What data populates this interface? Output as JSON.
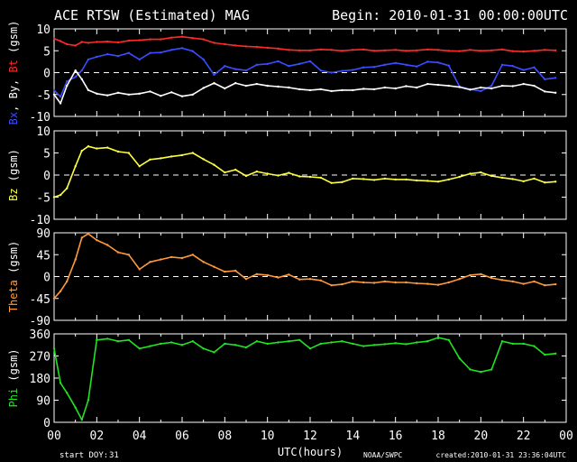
{
  "chart_data": {
    "type": "line",
    "title": "ACE RTSW (Estimated) MAG",
    "begin": "Begin: 2010-01-31 00:00:00UTC",
    "xlabel": "UTC(hours)",
    "start_doy_label": "start DOY:",
    "start_doy": "31",
    "credit": "NOAA/SWPC",
    "created": "created:2010-01-31 23:36:04UTC",
    "xlim": [
      0,
      24
    ],
    "x_ticks": [
      "00",
      "02",
      "04",
      "06",
      "08",
      "10",
      "12",
      "14",
      "16",
      "18",
      "20",
      "22",
      "00"
    ],
    "colors": {
      "bx": "#3b4dff",
      "by": "#ffffff",
      "bt": "#ff2a2a",
      "bz": "#ffff40",
      "theta": "#ff9a3c",
      "phi": "#22e322",
      "axis": "#ffffff",
      "zero": "#ffffff"
    },
    "panels": [
      {
        "id": "b",
        "ylabel_parts": [
          {
            "text": "Bx",
            "color": "#3b4dff"
          },
          {
            "text": ", By, ",
            "color": "#ffffff"
          },
          {
            "text": "Bt",
            "color": "#ff2a2a"
          },
          {
            "text": " (gsm)",
            "color": "#ffffff"
          }
        ],
        "ylim": [
          -10,
          10
        ],
        "yticks": [
          "10",
          "5",
          "0",
          "-5",
          "-10"
        ],
        "zero_line": true,
        "series": [
          {
            "key": "bt",
            "color": "#ff2a2a",
            "x": [
              0,
              0.3,
              0.6,
              1,
              1.3,
              1.6,
              2,
              2.5,
              3,
              3.5,
              4,
              4.5,
              5,
              5.5,
              6,
              6.5,
              7,
              7.5,
              8,
              8.5,
              9,
              9.5,
              10,
              10.5,
              11,
              11.5,
              12,
              12.5,
              13,
              13.5,
              14,
              14.5,
              15,
              15.5,
              16,
              16.5,
              17,
              17.5,
              18,
              18.5,
              19,
              19.5,
              20,
              20.5,
              21,
              21.5,
              22,
              22.5,
              23,
              23.5
            ],
            "y": [
              7.8,
              7.2,
              6.5,
              6.2,
              7.0,
              6.8,
              7.0,
              7.1,
              6.9,
              7.3,
              7.4,
              7.6,
              7.6,
              8.0,
              8.2,
              7.9,
              7.6,
              6.8,
              6.5,
              6.2,
              6.0,
              5.9,
              5.7,
              5.5,
              5.2,
              5.1,
              5.1,
              5.3,
              5.2,
              5.0,
              5.2,
              5.3,
              5.0,
              5.1,
              5.2,
              5.0,
              5.1,
              5.3,
              5.2,
              5.0,
              4.9,
              5.2,
              5.0,
              5.1,
              5.3,
              4.9,
              4.8,
              5.0,
              5.2,
              5.1
            ]
          },
          {
            "key": "bx",
            "color": "#3b4dff",
            "x": [
              0,
              0.3,
              0.6,
              1,
              1.3,
              1.6,
              2,
              2.5,
              3,
              3.5,
              4,
              4.5,
              5,
              5.5,
              6,
              6.5,
              7,
              7.5,
              8,
              8.5,
              9,
              9.5,
              10,
              10.5,
              11,
              11.5,
              12,
              12.5,
              13,
              13.5,
              14,
              14.5,
              15,
              15.5,
              16,
              16.5,
              17,
              17.5,
              18,
              18.5,
              19,
              19.5,
              20,
              20.5,
              21,
              21.5,
              22,
              22.5,
              23,
              23.5
            ],
            "y": [
              -4.0,
              -5.5,
              -2.0,
              -1.0,
              0.5,
              3.0,
              3.6,
              4.2,
              3.8,
              4.5,
              3.0,
              4.5,
              4.6,
              5.2,
              5.6,
              4.9,
              3.0,
              -0.5,
              1.5,
              0.8,
              0.5,
              1.8,
              2.0,
              2.6,
              1.5,
              2.0,
              2.6,
              0.5,
              0.0,
              0.4,
              0.6,
              1.2,
              1.3,
              1.8,
              2.2,
              1.8,
              1.4,
              2.5,
              2.3,
              1.6,
              -3.2,
              -3.8,
              -4.2,
              -3.0,
              1.8,
              1.5,
              0.6,
              1.2,
              -1.5,
              -1.2
            ]
          },
          {
            "key": "by",
            "color": "#ffffff",
            "x": [
              0,
              0.3,
              0.6,
              1,
              1.3,
              1.6,
              2,
              2.5,
              3,
              3.5,
              4,
              4.5,
              5,
              5.5,
              6,
              6.5,
              7,
              7.5,
              8,
              8.5,
              9,
              9.5,
              10,
              10.5,
              11,
              11.5,
              12,
              12.5,
              13,
              13.5,
              14,
              14.5,
              15,
              15.5,
              16,
              16.5,
              17,
              17.5,
              18,
              18.5,
              19,
              19.5,
              20,
              20.5,
              21,
              21.5,
              22,
              22.5,
              23,
              23.5
            ],
            "y": [
              -5.0,
              -7.0,
              -3.0,
              0.5,
              -1.5,
              -4.0,
              -4.8,
              -5.2,
              -4.6,
              -5.0,
              -4.8,
              -4.3,
              -5.3,
              -4.5,
              -5.4,
              -5.0,
              -3.5,
              -2.4,
              -3.6,
              -2.4,
              -3.0,
              -2.6,
              -3.0,
              -3.2,
              -3.4,
              -3.8,
              -4.0,
              -3.8,
              -4.2,
              -4.0,
              -4.0,
              -3.7,
              -3.8,
              -3.4,
              -3.6,
              -3.1,
              -3.4,
              -2.6,
              -2.8,
              -3.0,
              -3.3,
              -3.9,
              -3.4,
              -3.6,
              -3.0,
              -3.1,
              -2.6,
              -3.0,
              -4.3,
              -4.6
            ]
          }
        ]
      },
      {
        "id": "bz",
        "ylabel_parts": [
          {
            "text": "Bz",
            "color": "#ffff40"
          },
          {
            "text": " (gsm)",
            "color": "#ffffff"
          }
        ],
        "ylim": [
          -10,
          10
        ],
        "yticks": [
          "10",
          "5",
          "0",
          "-5",
          "-10"
        ],
        "zero_line": true,
        "series": [
          {
            "key": "bz",
            "color": "#ffff40",
            "x": [
              0,
              0.3,
              0.6,
              1,
              1.3,
              1.6,
              2,
              2.5,
              3,
              3.5,
              4,
              4.5,
              5,
              5.5,
              6,
              6.5,
              7,
              7.5,
              8,
              8.5,
              9,
              9.5,
              10,
              10.5,
              11,
              11.5,
              12,
              12.5,
              13,
              13.5,
              14,
              14.5,
              15,
              15.5,
              16,
              16.5,
              17,
              17.5,
              18,
              18.5,
              19,
              19.5,
              20,
              20.5,
              21,
              21.5,
              22,
              22.5,
              23,
              23.5
            ],
            "y": [
              -5.0,
              -4.5,
              -3.0,
              2.0,
              5.5,
              6.5,
              6.0,
              6.2,
              5.3,
              5.0,
              2.0,
              3.5,
              3.8,
              4.2,
              4.5,
              5.0,
              3.6,
              2.3,
              0.6,
              1.2,
              -0.2,
              0.8,
              0.3,
              -0.1,
              0.5,
              -0.3,
              -0.4,
              -0.6,
              -1.8,
              -1.6,
              -0.8,
              -0.9,
              -1.1,
              -0.8,
              -1.0,
              -1.0,
              -1.2,
              -1.3,
              -1.5,
              -1.0,
              -0.4,
              0.3,
              0.6,
              -0.2,
              -0.6,
              -0.9,
              -1.4,
              -0.8,
              -1.7,
              -1.5
            ]
          }
        ]
      },
      {
        "id": "theta",
        "ylabel_parts": [
          {
            "text": "Theta",
            "color": "#ff9a3c"
          },
          {
            "text": " (gsm)",
            "color": "#ffffff"
          }
        ],
        "ylim": [
          -90,
          90
        ],
        "yticks": [
          "90",
          "45",
          "0",
          "-45",
          "-90"
        ],
        "zero_line": true,
        "series": [
          {
            "key": "theta",
            "color": "#ff9a3c",
            "x": [
              0,
              0.3,
              0.6,
              1,
              1.3,
              1.6,
              2,
              2.5,
              3,
              3.5,
              4,
              4.5,
              5,
              5.5,
              6,
              6.5,
              7,
              7.5,
              8,
              8.5,
              9,
              9.5,
              10,
              10.5,
              11,
              11.5,
              12,
              12.5,
              13,
              13.5,
              14,
              14.5,
              15,
              15.5,
              16,
              16.5,
              17,
              17.5,
              18,
              18.5,
              19,
              19.5,
              20,
              20.5,
              21,
              21.5,
              22,
              22.5,
              23,
              23.5
            ],
            "y": [
              -45,
              -30,
              -10,
              35,
              80,
              88,
              75,
              65,
              50,
              45,
              15,
              30,
              35,
              40,
              38,
              45,
              30,
              20,
              10,
              12,
              -5,
              5,
              3,
              -2,
              4,
              -6,
              -5,
              -8,
              -18,
              -16,
              -10,
              -12,
              -13,
              -10,
              -12,
              -12,
              -14,
              -15,
              -17,
              -12,
              -5,
              3,
              5,
              -3,
              -7,
              -10,
              -15,
              -10,
              -18,
              -16
            ]
          }
        ]
      },
      {
        "id": "phi",
        "ylabel_parts": [
          {
            "text": "Phi",
            "color": "#22e322"
          },
          {
            "text": " (gsm)",
            "color": "#ffffff"
          }
        ],
        "ylim": [
          0,
          360
        ],
        "yticks": [
          "360",
          "270",
          "180",
          "90",
          "0"
        ],
        "zero_line": false,
        "series": [
          {
            "key": "phi",
            "color": "#22e322",
            "x": [
              0,
              0.3,
              0.6,
              1,
              1.3,
              1.6,
              2,
              2.5,
              3,
              3.5,
              4,
              4.5,
              5,
              5.5,
              6,
              6.5,
              7,
              7.5,
              8,
              8.5,
              9,
              9.5,
              10,
              10.5,
              11,
              11.5,
              12,
              12.5,
              13,
              13.5,
              14,
              14.5,
              15,
              15.5,
              16,
              16.5,
              17,
              17.5,
              18,
              18.5,
              19,
              19.5,
              20,
              20.5,
              21,
              21.5,
              22,
              22.5,
              23,
              23.5
            ],
            "y": [
              300,
              160,
              120,
              60,
              10,
              90,
              335,
              340,
              330,
              335,
              300,
              310,
              320,
              325,
              315,
              330,
              300,
              285,
              320,
              315,
              305,
              330,
              320,
              325,
              330,
              335,
              300,
              320,
              325,
              330,
              320,
              310,
              315,
              318,
              322,
              318,
              325,
              330,
              345,
              335,
              260,
              215,
              205,
              215,
              330,
              320,
              320,
              310,
              275,
              280
            ]
          }
        ]
      }
    ]
  }
}
